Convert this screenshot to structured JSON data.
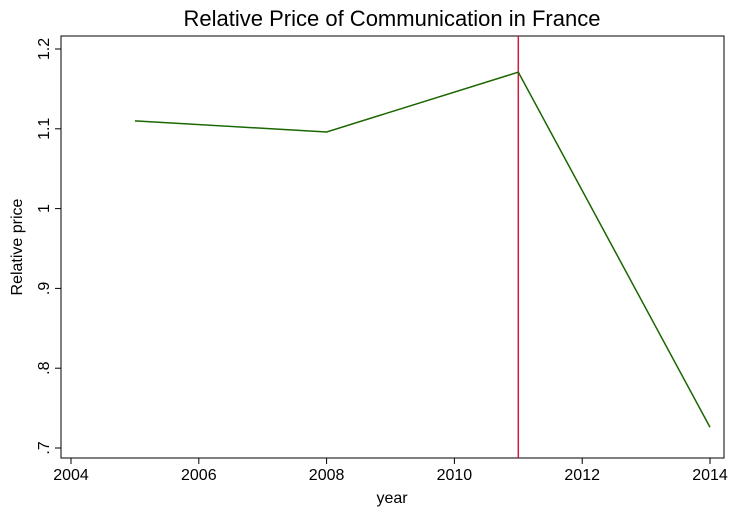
{
  "chart_data": {
    "type": "line",
    "title": "Relative Price of Communication in France",
    "x_label": "year",
    "y_label": "Relative price",
    "x": [
      2005,
      2008,
      2011,
      2014
    ],
    "series": [
      {
        "name": "Relative price",
        "color": "#1a6600",
        "values": [
          1.11,
          1.096,
          1.171,
          0.726
        ]
      }
    ],
    "xlim": [
      2004,
      2014
    ],
    "xticks": [
      2004,
      2006,
      2008,
      2010,
      2012,
      2014
    ],
    "ylim": [
      0.7,
      1.2
    ],
    "yticks": [
      {
        "value": 0.7,
        "label": ".7"
      },
      {
        "value": 0.8,
        "label": ".8"
      },
      {
        "value": 0.9,
        "label": ".9"
      },
      1,
      1.1,
      1.2
    ],
    "vline": {
      "x": 2011,
      "color": "#d01c3c"
    }
  }
}
